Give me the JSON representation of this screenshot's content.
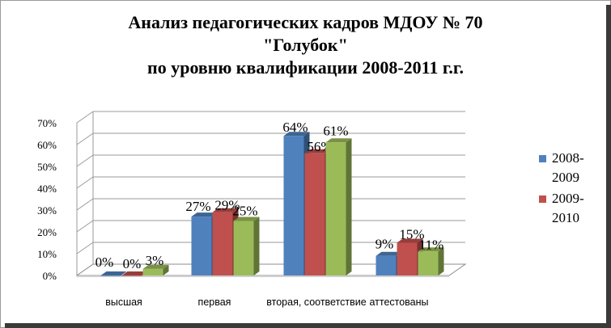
{
  "title_lines": [
    "Анализ педагогических кадров МДОУ № 70",
    "\"Голубок\"",
    "по уровню квалификации 2008-2011 г.г."
  ],
  "chart_data": {
    "type": "bar",
    "categories": [
      "высшая",
      "первая",
      "вторая, соответствие",
      "аттестованы"
    ],
    "series": [
      {
        "name": "2008-2009",
        "values": [
          0,
          27,
          64,
          9
        ],
        "labels": [
          "0%",
          "27%",
          "64%",
          "9%"
        ],
        "color": "#4f81bd"
      },
      {
        "name": "2009-2010",
        "values": [
          0,
          29,
          56,
          15
        ],
        "labels": [
          "0%",
          "29%",
          "56%",
          "15%"
        ],
        "color": "#c0504d"
      },
      {
        "name": "",
        "values": [
          3,
          25,
          61,
          11
        ],
        "labels": [
          "3%",
          "25%",
          "61%",
          "11%"
        ],
        "color": "#9bbb59"
      }
    ],
    "yticks": [
      "0%",
      "10%",
      "20%",
      "30%",
      "40%",
      "50%",
      "60%",
      "70%"
    ],
    "ylim": [
      0,
      70
    ],
    "grid": true,
    "legend": "right"
  }
}
